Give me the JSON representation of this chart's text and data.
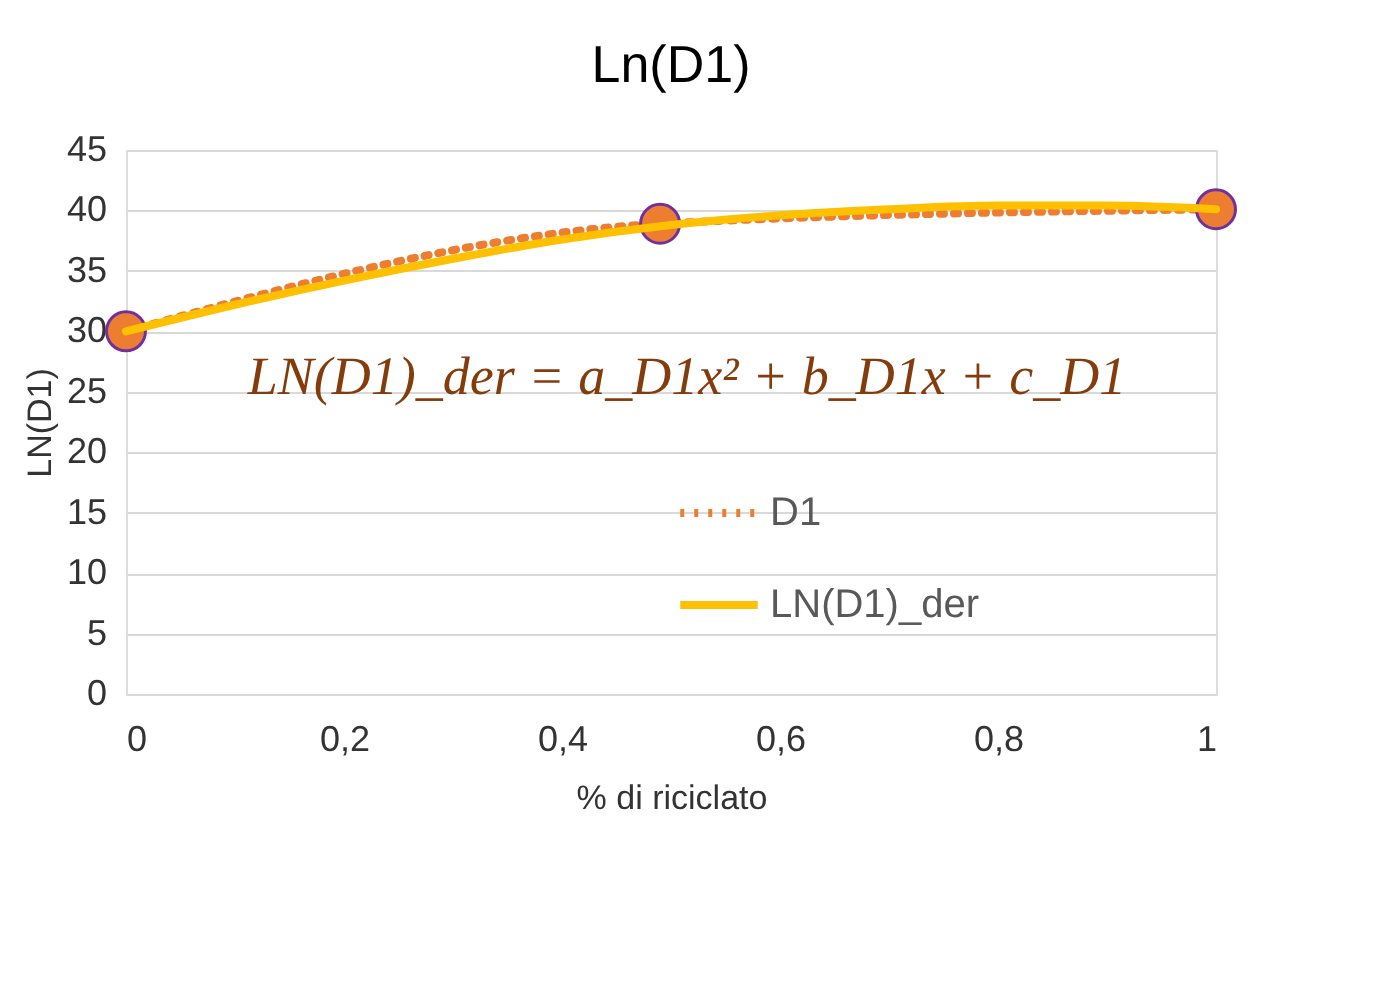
{
  "chart_data": {
    "type": "line",
    "title": "Ln(D1)",
    "xlabel": "% di riciclato",
    "ylabel": "LN(D1)",
    "xlim": [
      0,
      1
    ],
    "xticks": [
      0,
      {
        "value": 0.2,
        "label": "0,2"
      },
      {
        "value": 0.4,
        "label": "0,4"
      },
      {
        "value": 0.6,
        "label": "0,6"
      },
      {
        "value": 0.8,
        "label": "0,8"
      },
      1
    ],
    "ylim": [
      0,
      45
    ],
    "yticks": [
      0,
      5,
      10,
      15,
      20,
      25,
      30,
      35,
      40,
      45
    ],
    "grid": "y",
    "legend": "right",
    "annotations": [
      "LN(D1)_der = a_D1x² + b_D1x + c_D1"
    ],
    "series": [
      {
        "name": "D1",
        "color": "#ed7d31",
        "x": [
          0,
          0.49,
          1
        ],
        "values": [
          30,
          38.9,
          40.1
        ],
        "line_style": "dotted",
        "marker": "circle"
      },
      {
        "name": "LN(D1)_der",
        "color": "#ffc000",
        "x": [
          0,
          0.1,
          0.2,
          0.3,
          0.4,
          0.5,
          0.6,
          0.7,
          0.8,
          0.9,
          1
        ],
        "values": [
          30,
          32.2,
          34.2,
          36.0,
          37.6,
          38.8,
          39.6,
          40.1,
          40.4,
          40.4,
          40.1
        ],
        "line_style": "solid",
        "marker": "none"
      }
    ]
  }
}
